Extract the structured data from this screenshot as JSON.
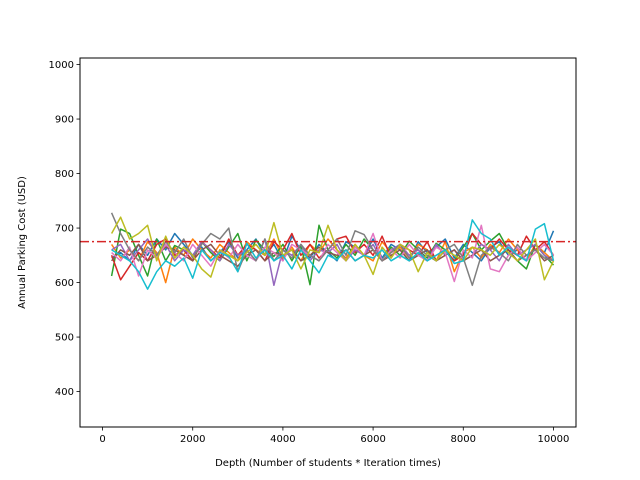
{
  "chart_data": {
    "type": "line",
    "title": "",
    "xlabel": "Depth (Number of students * Iteration times)",
    "ylabel": "Annual Parking Cost (USD)",
    "xlim": [
      -500,
      10500
    ],
    "ylim": [
      335,
      1012
    ],
    "xticks": [
      0,
      2000,
      4000,
      6000,
      8000,
      10000
    ],
    "yticks": [
      400,
      500,
      600,
      700,
      800,
      900,
      1000
    ],
    "grid": false,
    "legend": "none",
    "reference_line": {
      "y": 675,
      "color": "#d62728",
      "style": "dash-dot"
    },
    "x": [
      200,
      400,
      600,
      800,
      1000,
      1200,
      1400,
      1600,
      1800,
      2000,
      2200,
      2400,
      2600,
      2800,
      3000,
      3200,
      3400,
      3600,
      3800,
      4000,
      4200,
      4400,
      4600,
      4800,
      5000,
      5200,
      5400,
      5600,
      5800,
      6000,
      6200,
      6400,
      6600,
      6800,
      7000,
      7200,
      7400,
      7600,
      7800,
      8000,
      8200,
      8400,
      8600,
      8800,
      9000,
      9200,
      9400,
      9600,
      9800,
      10000
    ],
    "series": [
      {
        "color": "#1f77b4",
        "values": [
          645,
          655,
          640,
          670,
          650,
          680,
          660,
          690,
          670,
          650,
          665,
          640,
          655,
          675,
          645,
          660,
          680,
          650,
          670,
          640,
          685,
          660,
          645,
          670,
          655,
          640,
          675,
          665,
          650,
          680,
          645,
          670,
          660,
          640,
          675,
          655,
          665,
          680,
          645,
          670,
          655,
          640,
          665,
          675,
          650,
          660,
          640,
          670,
          655,
          695
        ]
      },
      {
        "color": "#ff7f0e",
        "values": [
          670,
          645,
          660,
          640,
          675,
          655,
          600,
          665,
          650,
          680,
          660,
          645,
          670,
          655,
          640,
          675,
          660,
          650,
          680,
          645,
          665,
          640,
          670,
          655,
          680,
          660,
          645,
          670,
          650,
          640,
          675,
          655,
          665,
          645,
          670,
          660,
          640,
          675,
          620,
          655,
          665,
          645,
          670,
          655,
          680,
          660,
          640,
          670,
          655,
          640
        ]
      },
      {
        "color": "#2ca02c",
        "values": [
          612,
          698,
          690,
          650,
          612,
          680,
          640,
          668,
          660,
          640,
          675,
          655,
          640,
          665,
          690,
          640,
          678,
          660,
          648,
          670,
          640,
          668,
          596,
          705,
          660,
          645,
          670,
          650,
          680,
          660,
          640,
          665,
          650,
          676,
          660,
          645,
          672,
          660,
          640,
          665,
          690,
          660,
          676,
          690,
          660,
          640,
          625,
          670,
          650,
          632
        ]
      },
      {
        "color": "#d62728",
        "values": [
          650,
          605,
          630,
          655,
          640,
          670,
          680,
          650,
          660,
          640,
          675,
          660,
          645,
          680,
          650,
          670,
          660,
          640,
          675,
          660,
          690,
          650,
          670,
          645,
          660,
          680,
          685,
          655,
          670,
          650,
          685,
          645,
          670,
          660,
          650,
          675,
          640,
          660,
          640,
          650,
          690,
          670,
          660,
          680,
          660,
          650,
          685,
          660,
          675,
          650
        ]
      },
      {
        "color": "#9467bd",
        "values": [
          660,
          670,
          640,
          660,
          680,
          650,
          670,
          640,
          660,
          650,
          675,
          660,
          640,
          670,
          650,
          660,
          640,
          680,
          595,
          660,
          650,
          670,
          640,
          660,
          655,
          670,
          640,
          660,
          650,
          670,
          640,
          660,
          670,
          650,
          660,
          640,
          670,
          650,
          660,
          640,
          650,
          670,
          660,
          640,
          670,
          650,
          660,
          670,
          650,
          640
        ]
      },
      {
        "color": "#8c564b",
        "values": [
          640,
          660,
          650,
          670,
          640,
          650,
          665,
          660,
          650,
          640,
          660,
          670,
          650,
          640,
          630,
          650,
          660,
          640,
          655,
          650,
          660,
          640,
          650,
          665,
          655,
          650,
          660,
          640,
          650,
          660,
          640,
          650,
          660,
          640,
          650,
          660,
          640,
          650,
          660,
          640,
          650,
          660,
          640,
          650,
          660,
          640,
          650,
          660,
          640,
          650
        ]
      },
      {
        "color": "#e377c2",
        "values": [
          655,
          640,
          665,
          612,
          660,
          645,
          670,
          655,
          640,
          670,
          650,
          630,
          660,
          645,
          670,
          650,
          640,
          665,
          655,
          640,
          670,
          660,
          650,
          640,
          670,
          655,
          640,
          665,
          650,
          690,
          640,
          660,
          645,
          670,
          650,
          640,
          665,
          655,
          602,
          660,
          645,
          705,
          625,
          620,
          650,
          665,
          640,
          655,
          670,
          650
        ]
      },
      {
        "color": "#7f7f7f",
        "values": [
          728,
          690,
          660,
          640,
          665,
          650,
          675,
          655,
          680,
          645,
          670,
          690,
          680,
          700,
          620,
          660,
          640,
          680,
          640,
          660,
          645,
          670,
          650,
          640,
          660,
          680,
          650,
          695,
          688,
          660,
          640,
          655,
          670,
          645,
          665,
          650,
          640,
          660,
          670,
          645,
          595,
          650,
          665,
          655,
          640,
          670,
          650,
          660,
          645,
          640
        ]
      },
      {
        "color": "#bcbd22",
        "values": [
          690,
          720,
          680,
          690,
          705,
          640,
          685,
          645,
          665,
          650,
          625,
          610,
          660,
          650,
          640,
          655,
          670,
          650,
          710,
          650,
          660,
          625,
          660,
          655,
          705,
          660,
          640,
          670,
          650,
          615,
          665,
          645,
          670,
          660,
          620,
          655,
          640,
          660,
          650,
          640,
          665,
          660,
          650,
          670,
          655,
          640,
          660,
          680,
          605,
          640
        ]
      },
      {
        "color": "#17becf",
        "values": [
          660,
          650,
          640,
          620,
          588,
          620,
          640,
          630,
          645,
          608,
          660,
          640,
          655,
          648,
          620,
          672,
          645,
          660,
          640,
          650,
          625,
          660,
          640,
          618,
          650,
          642,
          660,
          640,
          650,
          645,
          660,
          640,
          650,
          640,
          655,
          640,
          650,
          660,
          635,
          640,
          715,
          690,
          680,
          650,
          665,
          650,
          640,
          698,
          708,
          640
        ]
      }
    ]
  }
}
